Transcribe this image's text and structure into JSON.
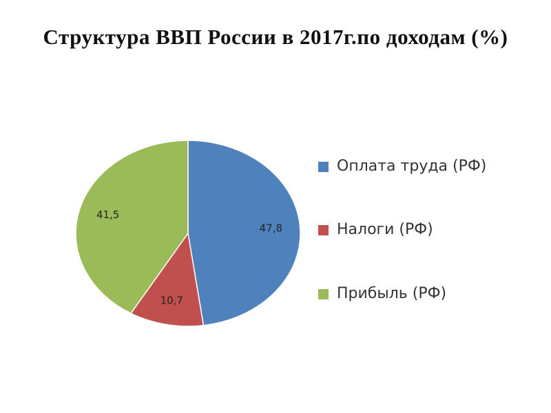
{
  "chart_data": {
    "type": "pie",
    "title": "Структура ВВП России в 2017г.по доходам (%)",
    "categories": [
      "Оплата труда (РФ)",
      "Налоги (РФ)",
      "Прибыль (РФ)"
    ],
    "values": [
      47.8,
      10.7,
      41.5
    ],
    "value_labels": [
      "47,8",
      "10,7",
      "41,5"
    ],
    "colors": [
      "#4f81bd",
      "#c0504d",
      "#9bbb59"
    ],
    "legend": "right"
  }
}
